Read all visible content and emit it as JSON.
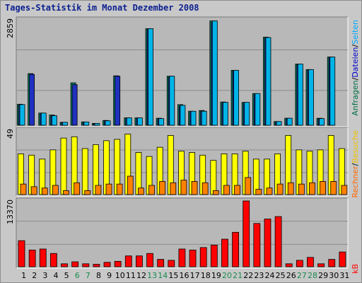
{
  "chart_data": {
    "type": "bar",
    "title": "Tages-Statistik im Monat Dezember 2008",
    "categories": [
      "1",
      "2",
      "3",
      "4",
      "5",
      "6",
      "7",
      "8",
      "9",
      "10",
      "11",
      "12",
      "13",
      "14",
      "15",
      "16",
      "17",
      "18",
      "19",
      "20",
      "21",
      "22",
      "23",
      "24",
      "25",
      "26",
      "27",
      "28",
      "29",
      "30",
      "31"
    ],
    "weekend_days": [
      "6",
      "7",
      "13",
      "14",
      "20",
      "21",
      "27",
      "28"
    ],
    "panels": [
      {
        "id": "anfragen",
        "max_label": "2859",
        "ymax": 2859,
        "legend": [
          {
            "text": "Anfragen",
            "color": "#007046"
          },
          {
            "text": "/",
            "color": "#000000"
          },
          {
            "text": "Dateien",
            "color": "#0000cc"
          },
          {
            "text": "/",
            "color": "#000000"
          },
          {
            "text": "Seiten",
            "color": "#00aaff"
          }
        ],
        "series": [
          {
            "name": "Anfragen",
            "color": "#008060",
            "values": [
              570,
              1400,
              330,
              280,
              80,
              1150,
              90,
              50,
              130,
              1340,
              200,
              200,
              2620,
              190,
              1330,
              560,
              380,
              400,
              2830,
              630,
              1490,
              620,
              860,
              2390,
              100,
              190,
              1660,
              1510,
              190,
              1850,
              0
            ]
          },
          {
            "name": "Dateien",
            "color": "#2030c0",
            "values": [
              550,
              1380,
              310,
              250,
              70,
              1100,
              70,
              40,
              120,
              1330,
              190,
              190,
              2590,
              170,
              1300,
              520,
              360,
              380,
              2790,
              600,
              1470,
              600,
              830,
              2360,
              80,
              170,
              1640,
              1490,
              170,
              1830,
              0
            ]
          },
          {
            "name": "Seiten",
            "color": "#00b4e8",
            "values": [
              560,
              0,
              330,
              260,
              80,
              0,
              90,
              50,
              120,
              0,
              200,
              200,
              2620,
              180,
              1330,
              540,
              380,
              380,
              2830,
              620,
              1490,
              620,
              860,
              2380,
              100,
              190,
              1660,
              1510,
              180,
              1850,
              0
            ]
          }
        ]
      },
      {
        "id": "besucher",
        "max_label": "49",
        "ymax": 49,
        "legend": [
          {
            "text": "Rechner",
            "color": "#ff6600"
          },
          {
            "text": "/",
            "color": "#000000"
          },
          {
            "text": "Besuche",
            "color": "#eec000"
          }
        ],
        "series": [
          {
            "name": "Besuche",
            "color": "#ffff00",
            "values": [
              31,
              30,
              27,
              34,
              43,
              44,
              35,
              38,
              41,
              42,
              46,
              32,
              29,
              36,
              45,
              33,
              32,
              30,
              26,
              31,
              31,
              33,
              27,
              27,
              31,
              45,
              34,
              33,
              34,
              45,
              35
            ]
          },
          {
            "name": "Rechner",
            "color": "#ff8000",
            "values": [
              8,
              6,
              5,
              7,
              3,
              9,
              3,
              7,
              8,
              8,
              14,
              5,
              7,
              10,
              9,
              11,
              10,
              9,
              3,
              7,
              7,
              13,
              4,
              5,
              8,
              9,
              8,
              9,
              10,
              10,
              7
            ]
          }
        ]
      },
      {
        "id": "kb",
        "max_label": "13370",
        "ymax": 13370,
        "legend": [
          {
            "text": "kB",
            "color": "#ff0000"
          }
        ],
        "series": [
          {
            "name": "kB",
            "color": "#ff0000",
            "values": [
              5300,
              3400,
              3600,
              2700,
              600,
              1000,
              600,
              500,
              900,
              1100,
              2200,
              2200,
              2700,
              1500,
              1300,
              3600,
              3400,
              3900,
              4400,
              5600,
              7000,
              13370,
              8800,
              9700,
              10200,
              600,
              1300,
              1900,
              600,
              1500,
              3000
            ]
          }
        ]
      }
    ]
  }
}
